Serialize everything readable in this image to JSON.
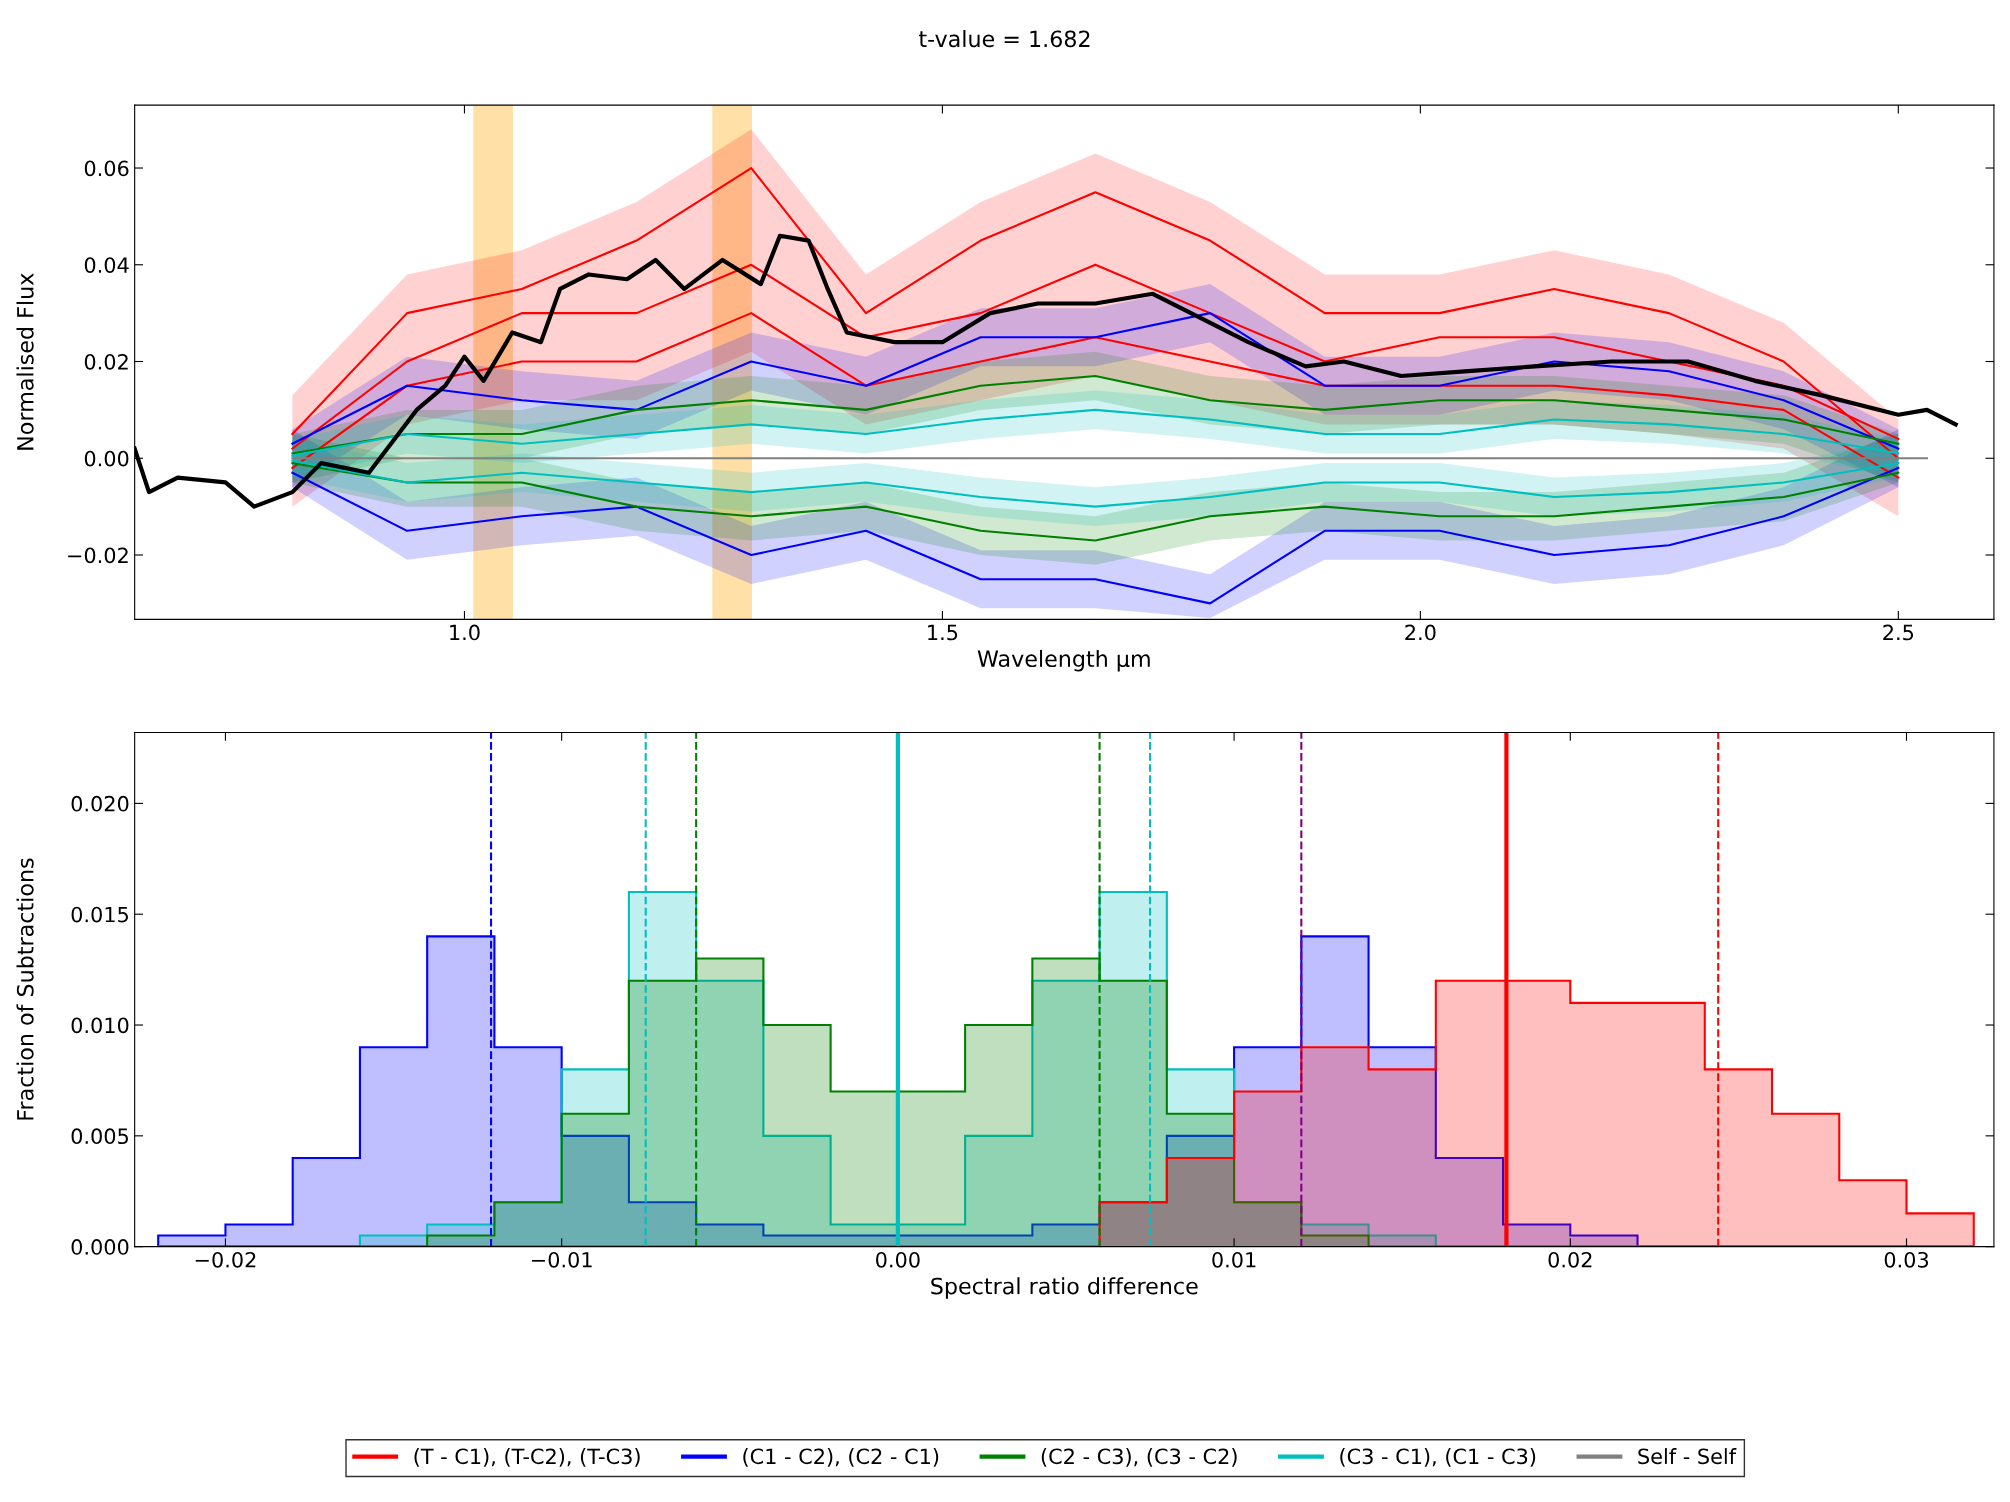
{
  "chart_data": [
    {
      "type": "line",
      "title": "t-value = 1.682",
      "xlabel": "Wavelength μm",
      "ylabel": "Normalised Flux",
      "xlim": [
        0.655,
        2.6
      ],
      "ylim": [
        -0.0333,
        0.073
      ],
      "xticks": [
        {
          "value": 1.0,
          "label": "1.0"
        },
        {
          "value": 1.5,
          "label": "1.5"
        },
        {
          "value": 2.0,
          "label": "2.0"
        },
        {
          "value": 2.5,
          "label": "2.5"
        }
      ],
      "yticks": [
        {
          "value": -0.02,
          "label": "−0.02"
        },
        {
          "value": 0.0,
          "label": "0.00"
        },
        {
          "value": 0.02,
          "label": "0.02"
        },
        {
          "value": 0.04,
          "label": "0.04"
        },
        {
          "value": 0.06,
          "label": "0.06"
        }
      ],
      "grid": false,
      "legend": "bottom",
      "marker": "none",
      "line_style": "solid",
      "bands": [
        {
          "axis": "x",
          "from": 1.01,
          "to": 1.05,
          "color": "#ffa500"
        },
        {
          "axis": "x",
          "from": 1.26,
          "to": 1.3,
          "color": "#ffa500"
        }
      ],
      "x": [
        0.82,
        0.94,
        1.06,
        1.18,
        1.3,
        1.42,
        1.54,
        1.66,
        1.78,
        1.9,
        2.02,
        2.14,
        2.26,
        2.38,
        2.5
      ],
      "series": [
        {
          "name": "(T - C1), (T-C2), (T-C3)",
          "color": "#ff0000",
          "values": [
            0.005,
            0.03,
            0.035,
            0.045,
            0.06,
            0.03,
            0.045,
            0.055,
            0.045,
            0.03,
            0.03,
            0.035,
            0.03,
            0.02,
            0.0
          ],
          "lower": [
            -0.01,
            0.007,
            0.012,
            0.012,
            0.022,
            0.007,
            0.012,
            0.017,
            0.012,
            0.007,
            0.007,
            0.007,
            0.005,
            0.002,
            -0.012
          ],
          "upper": [
            0.013,
            0.038,
            0.043,
            0.053,
            0.068,
            0.038,
            0.053,
            0.063,
            0.053,
            0.038,
            0.038,
            0.043,
            0.038,
            0.028,
            0.008
          ]
        },
        {
          "color": "#ff0000",
          "values": [
            0.002,
            0.02,
            0.03,
            0.03,
            0.04,
            0.025,
            0.03,
            0.04,
            0.03,
            0.02,
            0.025,
            0.025,
            0.02,
            0.015,
            0.004
          ]
        },
        {
          "color": "#ff0000",
          "values": [
            -0.002,
            0.015,
            0.02,
            0.02,
            0.03,
            0.015,
            0.02,
            0.025,
            0.02,
            0.015,
            0.015,
            0.015,
            0.013,
            0.01,
            -0.004
          ]
        },
        {
          "name": "(C1 - C2), (C2 - C1)",
          "color": "#0000ff",
          "values": [
            0.003,
            0.015,
            0.012,
            0.01,
            0.02,
            0.015,
            0.025,
            0.025,
            0.03,
            0.015,
            0.015,
            0.02,
            0.018,
            0.012,
            0.002
          ],
          "lower": [
            -0.006,
            0.009,
            0.006,
            0.004,
            0.014,
            0.009,
            0.019,
            0.019,
            0.024,
            0.009,
            0.009,
            0.014,
            0.012,
            0.006,
            -0.006
          ],
          "upper": [
            0.006,
            0.021,
            0.018,
            0.016,
            0.026,
            0.021,
            0.031,
            0.031,
            0.036,
            0.021,
            0.021,
            0.026,
            0.024,
            0.018,
            0.006
          ]
        },
        {
          "color": "#0000ff",
          "values": [
            -0.003,
            -0.015,
            -0.012,
            -0.01,
            -0.02,
            -0.015,
            -0.025,
            -0.025,
            -0.03,
            -0.015,
            -0.015,
            -0.02,
            -0.018,
            -0.012,
            -0.002
          ],
          "lower": [
            -0.006,
            -0.021,
            -0.018,
            -0.016,
            -0.026,
            -0.021,
            -0.031,
            -0.031,
            -0.033,
            -0.021,
            -0.021,
            -0.026,
            -0.024,
            -0.018,
            -0.006
          ],
          "upper": [
            0.006,
            -0.009,
            -0.006,
            -0.004,
            -0.014,
            -0.009,
            -0.019,
            -0.019,
            -0.024,
            -0.009,
            -0.009,
            -0.014,
            -0.012,
            -0.006,
            0.006
          ]
        },
        {
          "name": "(C2 - C3), (C3 - C2)",
          "color": "#008000",
          "values": [
            0.001,
            0.005,
            0.005,
            0.01,
            0.012,
            0.01,
            0.015,
            0.017,
            0.012,
            0.01,
            0.012,
            0.012,
            0.01,
            0.008,
            0.003
          ],
          "lower": [
            -0.005,
            0.0,
            0.0,
            0.005,
            0.007,
            0.005,
            0.01,
            0.012,
            0.007,
            0.005,
            0.007,
            0.007,
            0.005,
            0.003,
            -0.005
          ],
          "upper": [
            0.005,
            0.01,
            0.01,
            0.015,
            0.017,
            0.015,
            0.02,
            0.022,
            0.017,
            0.015,
            0.017,
            0.017,
            0.015,
            0.013,
            0.005
          ]
        },
        {
          "color": "#008000",
          "values": [
            -0.001,
            -0.005,
            -0.005,
            -0.01,
            -0.012,
            -0.01,
            -0.015,
            -0.017,
            -0.012,
            -0.01,
            -0.012,
            -0.012,
            -0.01,
            -0.008,
            -0.003
          ],
          "lower": [
            -0.005,
            -0.01,
            -0.01,
            -0.015,
            -0.017,
            -0.015,
            -0.02,
            -0.022,
            -0.017,
            -0.015,
            -0.017,
            -0.017,
            -0.015,
            -0.013,
            -0.005
          ],
          "upper": [
            0.005,
            0.0,
            0.0,
            -0.005,
            -0.007,
            -0.005,
            -0.01,
            -0.012,
            -0.007,
            -0.005,
            -0.007,
            -0.007,
            -0.005,
            -0.003,
            0.005
          ]
        },
        {
          "name": "(C3 - C1), (C1 - C3)",
          "color": "#00bfbf",
          "values": [
            0.0005,
            0.005,
            0.003,
            0.005,
            0.007,
            0.005,
            0.008,
            0.01,
            0.008,
            0.005,
            0.005,
            0.008,
            0.007,
            0.005,
            0.001
          ],
          "lower": [
            -0.004,
            0.001,
            -0.001,
            0.001,
            0.003,
            0.001,
            0.004,
            0.006,
            0.004,
            0.001,
            0.001,
            0.004,
            0.003,
            0.001,
            -0.004
          ],
          "upper": [
            0.004,
            0.009,
            0.007,
            0.009,
            0.011,
            0.009,
            0.012,
            0.014,
            0.012,
            0.009,
            0.009,
            0.012,
            0.011,
            0.009,
            0.004
          ]
        },
        {
          "color": "#00bfbf",
          "values": [
            -0.0005,
            -0.005,
            -0.003,
            -0.005,
            -0.007,
            -0.005,
            -0.008,
            -0.01,
            -0.008,
            -0.005,
            -0.005,
            -0.008,
            -0.007,
            -0.005,
            -0.001
          ],
          "lower": [
            -0.004,
            -0.009,
            -0.007,
            -0.009,
            -0.011,
            -0.009,
            -0.012,
            -0.014,
            -0.012,
            -0.009,
            -0.009,
            -0.012,
            -0.011,
            -0.009,
            -0.004
          ],
          "upper": [
            0.004,
            -0.001,
            0.001,
            -0.001,
            -0.003,
            -0.001,
            -0.004,
            -0.006,
            -0.004,
            -0.001,
            -0.001,
            -0.004,
            -0.003,
            -0.001,
            0.004
          ]
        },
        {
          "name": "Self - Self",
          "color": "#808080",
          "x": [
            0.82,
            2.53
          ],
          "values": [
            0.0,
            0.0
          ]
        },
        {
          "color": "#000000",
          "x": [
            0.655,
            0.67,
            0.7,
            0.75,
            0.78,
            0.82,
            0.85,
            0.9,
            0.95,
            0.98,
            1.0,
            1.02,
            1.05,
            1.08,
            1.1,
            1.13,
            1.17,
            1.2,
            1.23,
            1.27,
            1.31,
            1.33,
            1.36,
            1.38,
            1.4,
            1.45,
            1.5,
            1.55,
            1.6,
            1.66,
            1.72,
            1.76,
            1.82,
            1.88,
            1.92,
            1.98,
            2.05,
            2.12,
            2.2,
            2.28,
            2.35,
            2.42,
            2.5,
            2.53,
            2.56
          ],
          "values": [
            0.002,
            -0.007,
            -0.004,
            -0.005,
            -0.01,
            -0.007,
            -0.001,
            -0.003,
            0.01,
            0.015,
            0.021,
            0.016,
            0.026,
            0.024,
            0.035,
            0.038,
            0.037,
            0.041,
            0.035,
            0.041,
            0.036,
            0.046,
            0.045,
            0.035,
            0.026,
            0.024,
            0.024,
            0.03,
            0.032,
            0.032,
            0.034,
            0.03,
            0.024,
            0.019,
            0.02,
            0.017,
            0.018,
            0.019,
            0.02,
            0.02,
            0.016,
            0.013,
            0.009,
            0.01,
            0.007
          ]
        }
      ]
    },
    {
      "type": "histogram",
      "bins": [
        -0.022,
        -0.02,
        -0.018,
        -0.016,
        -0.014,
        -0.012,
        -0.01,
        -0.008,
        -0.006,
        -0.004,
        -0.002,
        0.0,
        0.002,
        0.004,
        0.006,
        0.008,
        0.01,
        0.012,
        0.014,
        0.016,
        0.018,
        0.02,
        0.022,
        0.024,
        0.026,
        0.028,
        0.03,
        0.032
      ],
      "xlabel": "Spectral ratio difference",
      "ylabel": "Fraction of Subtractions",
      "xlim": [
        -0.0227,
        0.0326
      ],
      "ylim": [
        0.0,
        0.0232
      ],
      "xticks": [
        {
          "value": -0.02,
          "label": "−0.02"
        },
        {
          "value": -0.01,
          "label": "−0.01"
        },
        {
          "value": 0.0,
          "label": "0.00"
        },
        {
          "value": 0.01,
          "label": "0.01"
        },
        {
          "value": 0.02,
          "label": "0.02"
        },
        {
          "value": 0.03,
          "label": "0.03"
        }
      ],
      "yticks": [
        {
          "value": 0.0,
          "label": "0.000"
        },
        {
          "value": 0.005,
          "label": "0.005"
        },
        {
          "value": 0.01,
          "label": "0.010"
        },
        {
          "value": 0.015,
          "label": "0.015"
        },
        {
          "value": 0.02,
          "label": "0.020"
        }
      ],
      "grid": false,
      "ref_lines": [
        {
          "axis": "x",
          "value": -0.0121,
          "color": "#0000ff",
          "line_style": "dashed"
        },
        {
          "axis": "x",
          "value": -0.0075,
          "color": "#00bfbf",
          "line_style": "dashed"
        },
        {
          "axis": "x",
          "value": -0.006,
          "color": "#008000",
          "line_style": "dashed"
        },
        {
          "axis": "x",
          "value": 0.006,
          "color": "#008000",
          "line_style": "dashed"
        },
        {
          "axis": "x",
          "value": 0.0075,
          "color": "#00bfbf",
          "line_style": "dashed"
        },
        {
          "axis": "x",
          "value": 0.012,
          "color": "#800080",
          "line_style": "dashed"
        },
        {
          "axis": "x",
          "value": 0.0244,
          "color": "#ff0000",
          "line_style": "dashed"
        },
        {
          "axis": "x",
          "value": 0.0181,
          "color": "#ff0000",
          "line_style": "solid"
        },
        {
          "axis": "x",
          "value": 0.0,
          "color": "#00bfbf",
          "line_style": "solid"
        }
      ],
      "series": [
        {
          "color": "#0000ff",
          "values": [
            0.0005,
            0.001,
            0.004,
            0.009,
            0.014,
            0.009,
            0.005,
            0.002,
            0.001,
            0.0005,
            0.0005,
            0.0005,
            0.0005,
            0.001,
            0.002,
            0.005,
            0.009,
            0.014,
            0.009,
            0.004,
            0.001,
            0.0005,
            0.0,
            0.0,
            0.0,
            0.0,
            0.0
          ]
        },
        {
          "color": "#00bfbf",
          "values": [
            0.0,
            0.0,
            0.0,
            0.0005,
            0.001,
            0.002,
            0.008,
            0.016,
            0.012,
            0.005,
            0.001,
            0.001,
            0.005,
            0.012,
            0.016,
            0.008,
            0.002,
            0.001,
            0.0005,
            0.0,
            0.0,
            0.0,
            0.0,
            0.0,
            0.0,
            0.0,
            0.0
          ]
        },
        {
          "color": "#008000",
          "values": [
            0.0,
            0.0,
            0.0,
            0.0,
            0.0005,
            0.002,
            0.006,
            0.012,
            0.013,
            0.01,
            0.007,
            0.007,
            0.01,
            0.013,
            0.012,
            0.006,
            0.002,
            0.0005,
            0.0,
            0.0,
            0.0,
            0.0,
            0.0,
            0.0,
            0.0,
            0.0,
            0.0
          ]
        },
        {
          "color": "#ff0000",
          "values": [
            0.0,
            0.0,
            0.0,
            0.0,
            0.0,
            0.0,
            0.0,
            0.0,
            0.0,
            0.0,
            0.0,
            0.0,
            0.0,
            0.0,
            0.002,
            0.004,
            0.007,
            0.009,
            0.008,
            0.012,
            0.012,
            0.011,
            0.011,
            0.008,
            0.006,
            0.003,
            0.0015
          ]
        }
      ]
    }
  ]
}
